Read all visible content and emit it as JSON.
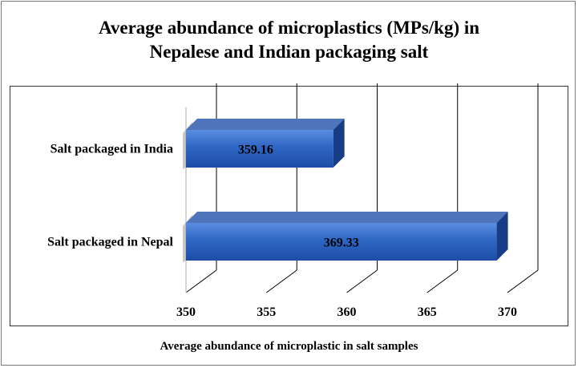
{
  "chart_data": {
    "type": "bar",
    "orientation": "horizontal",
    "title": "Average abundance of microplastics (MPs/kg) in Nepalese and Indian packaging salt",
    "title_lines": [
      "Average abundance of microplastics (MPs/kg) in",
      "Nepalese and Indian packaging salt"
    ],
    "xlabel": "Average abundance of microplastic in salt samples",
    "ylabel": "",
    "categories": [
      "Salt packaged in India",
      "Salt packaged in Nepal"
    ],
    "values": [
      359.16,
      369.33
    ],
    "data_labels": [
      "359.16",
      "369.33"
    ],
    "xlim": [
      350,
      370
    ],
    "ticks": [
      350,
      355,
      360,
      365,
      370
    ],
    "tick_labels": [
      "350",
      "355",
      "360",
      "365",
      "370"
    ],
    "grid": true,
    "legend": "none",
    "style": "3d",
    "bar_color": "#2f66c4"
  }
}
